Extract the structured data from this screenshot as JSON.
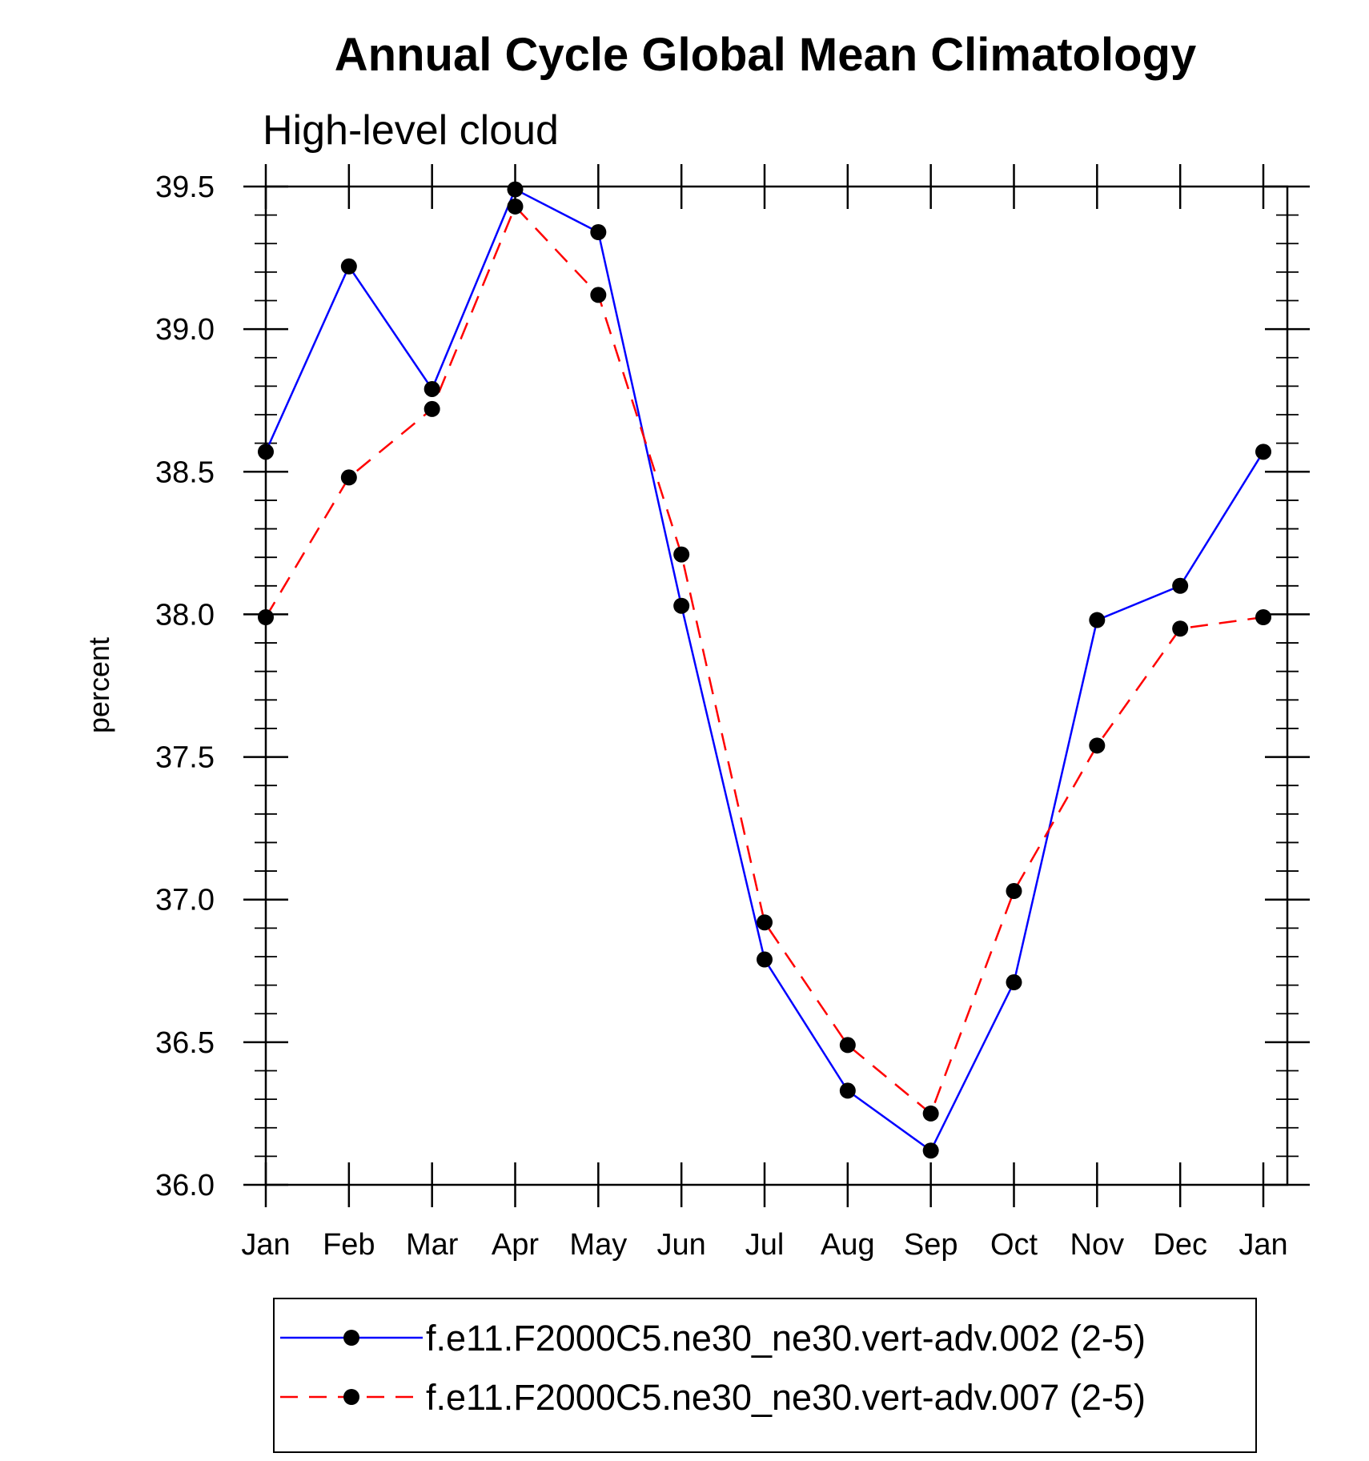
{
  "chart_data": {
    "type": "line",
    "title": "Annual Cycle Global Mean Climatology",
    "subtitle": "High-level cloud",
    "xlabel": "",
    "ylabel": "percent",
    "categories": [
      "Jan",
      "Feb",
      "Mar",
      "Apr",
      "May",
      "Jun",
      "Jul",
      "Aug",
      "Sep",
      "Oct",
      "Nov",
      "Dec",
      "Jan"
    ],
    "ylim": [
      36.0,
      39.5
    ],
    "yticks": [
      "36.0",
      "36.5",
      "37.0",
      "37.5",
      "38.0",
      "38.5",
      "39.0",
      "39.5"
    ],
    "grid": false,
    "legend_position": "bottom",
    "series": [
      {
        "name": "f.e11.F2000C5.ne30_ne30.vert-adv.002 (2-5)",
        "color": "#0000ff",
        "dash": "solid",
        "marker": "filled-circle",
        "values": [
          38.57,
          39.22,
          38.79,
          39.49,
          39.34,
          38.03,
          36.79,
          36.33,
          36.12,
          36.71,
          37.98,
          38.1,
          38.57
        ]
      },
      {
        "name": "f.e11.F2000C5.ne30_ne30.vert-adv.007 (2-5)",
        "color": "#ff0000",
        "dash": "dashed",
        "marker": "filled-circle",
        "values": [
          37.99,
          38.48,
          38.72,
          39.43,
          39.12,
          38.21,
          36.92,
          36.49,
          36.25,
          37.03,
          37.54,
          37.95,
          37.99
        ]
      }
    ]
  }
}
